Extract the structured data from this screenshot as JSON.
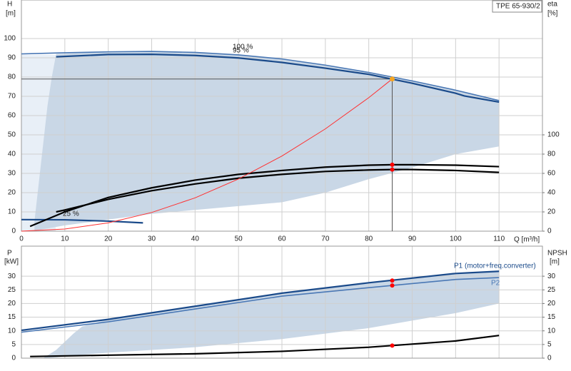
{
  "chart_data": [
    {
      "type": "line",
      "model_label": "TPE 65-930/2",
      "ylabel": "H",
      "yunit": "[m]",
      "y2label": "eta",
      "y2unit": "[%]",
      "xlabel": "Q [m³/h]",
      "xlim": [
        0,
        120
      ],
      "xticks": [
        0,
        10,
        20,
        30,
        40,
        50,
        60,
        70,
        80,
        90,
        100,
        110
      ],
      "ylim": [
        0,
        120
      ],
      "yticks": [
        0,
        10,
        20,
        30,
        40,
        50,
        60,
        70,
        80,
        90,
        100
      ],
      "y2lim": [
        0,
        240
      ],
      "y2ticks": [
        0,
        20,
        40,
        60,
        80,
        100
      ],
      "grid": true,
      "range_area": {
        "color": "#c9d7e6",
        "x": [
          3,
          4,
          5,
          6,
          7,
          8,
          20,
          30,
          40,
          50,
          60,
          70,
          80,
          90,
          100,
          110,
          110,
          100,
          90,
          80,
          70,
          60,
          50,
          40,
          30,
          20,
          10,
          5,
          3
        ],
        "y": [
          5,
          25,
          45,
          65,
          80,
          92,
          93.1,
          93.3,
          92.8,
          91.5,
          89.4,
          86.2,
          82.4,
          78,
          73.2,
          67.8,
          44,
          40,
          33,
          27,
          20,
          15,
          13,
          11,
          9,
          6,
          3,
          1,
          0
        ]
      },
      "series": [
        {
          "name": "100 %",
          "color": "#4a78b5",
          "x": [
            0,
            10,
            20,
            30,
            40,
            50,
            60,
            70,
            80,
            90,
            100,
            110
          ],
          "values": [
            92,
            92.6,
            93.1,
            93.3,
            92.8,
            91.5,
            89.4,
            86.2,
            82.4,
            78,
            73.2,
            67.8
          ]
        },
        {
          "name": "95 %",
          "color": "#1a4a8a",
          "x": [
            8,
            20,
            30,
            40,
            50,
            60,
            70,
            80,
            90,
            100,
            102,
            110
          ],
          "values": [
            90.5,
            91.7,
            91.8,
            91.2,
            89.9,
            87.6,
            84.6,
            81.4,
            76.8,
            71.6,
            70.2,
            67
          ]
        },
        {
          "name": "25 %",
          "color": "#1a4a8a",
          "x": [
            0,
            10,
            20,
            28
          ],
          "values": [
            6,
            5.9,
            5.2,
            4.3
          ]
        },
        {
          "color": "#000000",
          "axis": "y2",
          "x": [
            2,
            10,
            20,
            30,
            40,
            50,
            60,
            70,
            80,
            85.4,
            90,
            100,
            110
          ],
          "values": [
            5,
            20,
            35,
            45,
            53,
            59,
            63,
            66.5,
            68.5,
            69,
            69,
            68.5,
            67
          ]
        },
        {
          "color": "#000000",
          "axis": "y2",
          "x": [
            8,
            10,
            20,
            30,
            40,
            50,
            60,
            70,
            80,
            85.4,
            90,
            100,
            110
          ],
          "values": [
            20,
            22,
            33,
            42,
            49,
            55,
            59,
            62,
            63.5,
            64,
            64,
            63,
            61
          ]
        },
        {
          "color": "#ff3030",
          "x": [
            0,
            10,
            20,
            30,
            40,
            50,
            60,
            70,
            80,
            85.4
          ],
          "values": [
            0,
            1.1,
            4.3,
            9.7,
            17.3,
            27.1,
            39,
            53.1,
            69.3,
            79
          ]
        }
      ],
      "duty": {
        "x": 85.4,
        "y": 79,
        "color": "#f5a623"
      },
      "points": [
        {
          "x": 85.4,
          "y": 69,
          "axis": "y2",
          "color": "#ff0000"
        },
        {
          "x": 85.4,
          "y": 64,
          "axis": "y2",
          "color": "#ff0000"
        }
      ]
    },
    {
      "type": "line",
      "ylabel": "P",
      "yunit": "[kW]",
      "y2label": "NPSH",
      "y2unit": "[m]",
      "xlim": [
        0,
        120
      ],
      "ylim": [
        0,
        41
      ],
      "yticks": [
        0,
        5,
        10,
        15,
        20,
        25,
        30
      ],
      "y2lim": [
        0,
        41
      ],
      "y2ticks": [
        0,
        5,
        10,
        15,
        20,
        25,
        30
      ],
      "grid": true,
      "range_area": {
        "color": "#c9d7e6",
        "x": [
          5,
          8,
          10,
          12,
          14,
          20,
          40,
          60,
          80,
          100,
          110,
          110,
          100,
          80,
          60,
          40,
          20,
          12,
          8
        ],
        "y": [
          0,
          3,
          6,
          9,
          11.6,
          14.2,
          19,
          23.8,
          27.6,
          31,
          31.8,
          20,
          16.5,
          11,
          7,
          4,
          2,
          1,
          0.3
        ]
      },
      "series": [
        {
          "name": "P1 (motor+freq.converter)",
          "color": "#1a4a8a",
          "x": [
            0,
            20,
            40,
            60,
            80,
            100,
            110
          ],
          "values": [
            10.2,
            14.2,
            19,
            23.8,
            27.6,
            31,
            31.8
          ]
        },
        {
          "name": "P2",
          "color": "#4a78b5",
          "x": [
            0,
            20,
            40,
            60,
            80,
            100,
            110
          ],
          "values": [
            9.5,
            13.3,
            18,
            22.7,
            25.8,
            28.8,
            29.5
          ]
        },
        {
          "color": "#000000",
          "axis": "y2",
          "x": [
            2,
            20,
            40,
            60,
            80,
            100,
            110
          ],
          "values": [
            0.6,
            1.1,
            1.6,
            2.5,
            4,
            6.3,
            8.3
          ]
        }
      ],
      "points": [
        {
          "x": 85.4,
          "y": 28.4,
          "color": "#ff0000"
        },
        {
          "x": 85.4,
          "y": 26.6,
          "color": "#ff0000"
        },
        {
          "x": 85.4,
          "y": 4.6,
          "axis": "y2",
          "color": "#ff0000"
        }
      ]
    }
  ]
}
